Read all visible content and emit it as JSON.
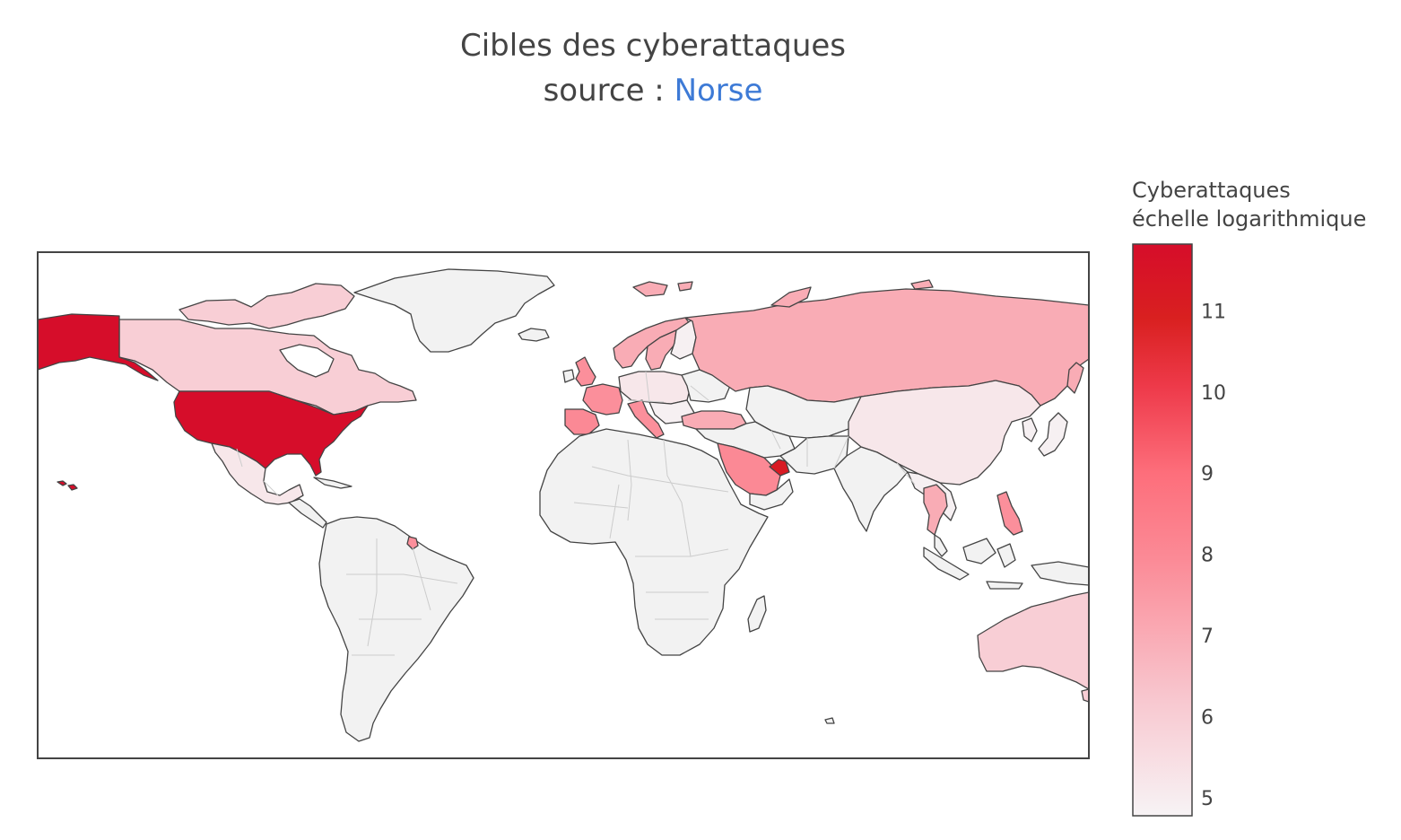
{
  "title": {
    "line1": "Cibles des cyberattaques",
    "source_prefix": "source : ",
    "source_link": "Norse"
  },
  "colorbar": {
    "title_line1": "Cyberattaques",
    "title_line2": "échelle logarithmique",
    "min": 4.8,
    "max": 11.8,
    "ticks": [
      "5",
      "6",
      "7",
      "8",
      "9",
      "10",
      "11"
    ],
    "tick_values": [
      5,
      6,
      7,
      8,
      9,
      10,
      11
    ],
    "colorscale": [
      [
        0.0,
        "#f7f3f5"
      ],
      [
        0.2,
        "#f8c8d0"
      ],
      [
        0.45,
        "#fb8a96"
      ],
      [
        0.6,
        "#fd6e7b"
      ],
      [
        0.75,
        "#ee3a4a"
      ],
      [
        0.87,
        "#d92020"
      ],
      [
        1.0,
        "#d60d2a"
      ]
    ]
  },
  "colors": {
    "no_data": "#f2f2f2",
    "coastline": "#444444",
    "border": "#cccccc",
    "link": "#3d7ad6"
  },
  "chart_data": {
    "type": "choropleth",
    "title": "Cibles des cyberattaques source : Norse",
    "colorbar_title": "Cyberattaques échelle logarithmique",
    "scale": "log",
    "range": [
      4.8,
      11.8
    ],
    "locations": [
      {
        "country": "United States",
        "z": 11.8
      },
      {
        "country": "United Arab Emirates",
        "z": 11.2
      },
      {
        "country": "Saudi Arabia",
        "z": 8.0
      },
      {
        "country": "France",
        "z": 7.8
      },
      {
        "country": "Spain",
        "z": 8.0
      },
      {
        "country": "Italy",
        "z": 7.8
      },
      {
        "country": "United Kingdom",
        "z": 7.8
      },
      {
        "country": "Philippines",
        "z": 7.8
      },
      {
        "country": "French Guiana",
        "z": 7.8
      },
      {
        "country": "Russia",
        "z": 7.0
      },
      {
        "country": "Sweden",
        "z": 7.0
      },
      {
        "country": "Norway",
        "z": 7.0
      },
      {
        "country": "Thailand",
        "z": 7.0
      },
      {
        "country": "Turkey",
        "z": 7.0
      },
      {
        "country": "Canada",
        "z": 6.0
      },
      {
        "country": "Australia",
        "z": 6.0
      },
      {
        "country": "Germany",
        "z": 5.2
      },
      {
        "country": "China",
        "z": 5.2
      },
      {
        "country": "Mexico",
        "z": 5.2
      }
    ]
  }
}
